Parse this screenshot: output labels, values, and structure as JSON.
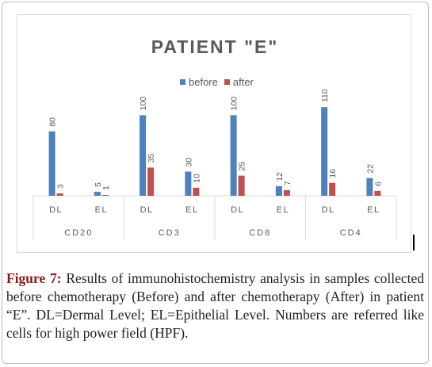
{
  "chart_data": {
    "type": "bar",
    "title": "PATIENT \"E\"",
    "xlabel": "",
    "ylabel": "",
    "ylim": [
      0,
      120
    ],
    "grid": false,
    "legend_position": "top",
    "colors": {
      "before": "#4f81bd",
      "after": "#c0504d"
    },
    "groups": [
      "CD20",
      "CD3",
      "CD8",
      "CD4"
    ],
    "categories": [
      "DL",
      "EL",
      "DL",
      "EL",
      "DL",
      "EL",
      "DL",
      "EL"
    ],
    "series": [
      {
        "name": "before",
        "values": [
          80,
          5,
          100,
          30,
          100,
          12,
          110,
          22
        ]
      },
      {
        "name": "after",
        "values": [
          3,
          1,
          35,
          10,
          25,
          7,
          16,
          6
        ]
      }
    ]
  },
  "caption": {
    "label": "Figure 7:",
    "text": " Results of immunohistochemistry analysis in samples collected before chemotherapy (Before) and after chemotherapy (After) in patient “E”. DL=Dermal Level; EL=Epithelial Level. Numbers are referred like cells for high power field (HPF)."
  }
}
